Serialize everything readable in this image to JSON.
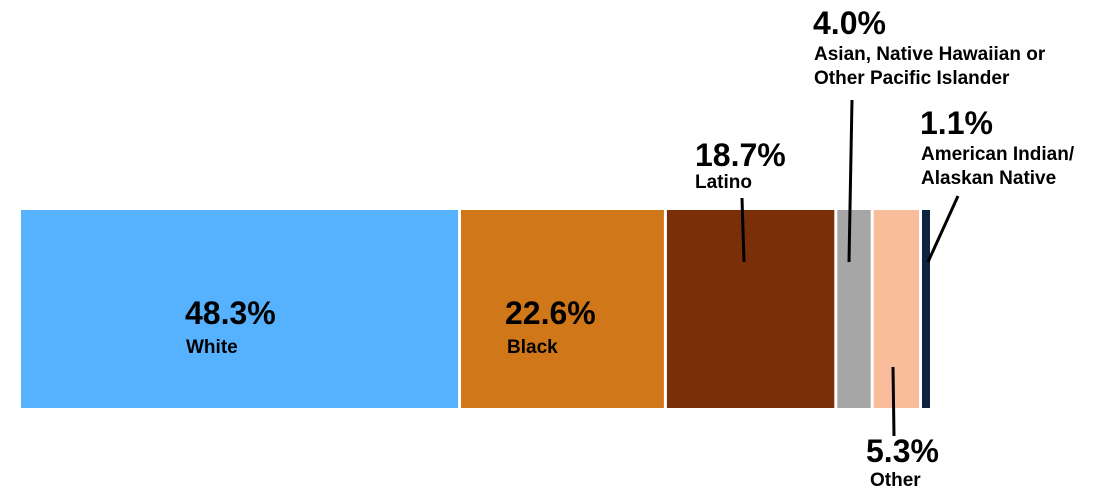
{
  "chart_data": {
    "type": "bar",
    "orientation": "horizontal-stacked-100",
    "categories": [
      "White",
      "Black",
      "Latino",
      "Asian, Native Hawaiian or Other Pacific Islander",
      "Other",
      "American Indian/ Alaskan Native"
    ],
    "values": [
      48.3,
      22.6,
      18.7,
      4.0,
      5.3,
      1.1
    ],
    "value_labels": [
      "48.3%",
      "22.6%",
      "18.7%",
      "4.0%",
      "5.3%",
      "1.1%"
    ],
    "label_lines": [
      [
        "White"
      ],
      [
        "Black"
      ],
      [
        "Latino"
      ],
      [
        "Asian, Native Hawaiian or",
        "Other Pacific Islander"
      ],
      [
        "Other"
      ],
      [
        "American Indian/",
        "Alaskan Native"
      ]
    ],
    "label_placement": [
      "inside",
      "inside",
      "above",
      "above",
      "below",
      "above"
    ],
    "colors": [
      "#56B1FF",
      "#D07719",
      "#7A2F08",
      "#A6A6A6",
      "#F9BD9B",
      "#0D2340"
    ],
    "title": "",
    "xlabel": "",
    "ylabel": "",
    "legend": false,
    "grid": false
  }
}
